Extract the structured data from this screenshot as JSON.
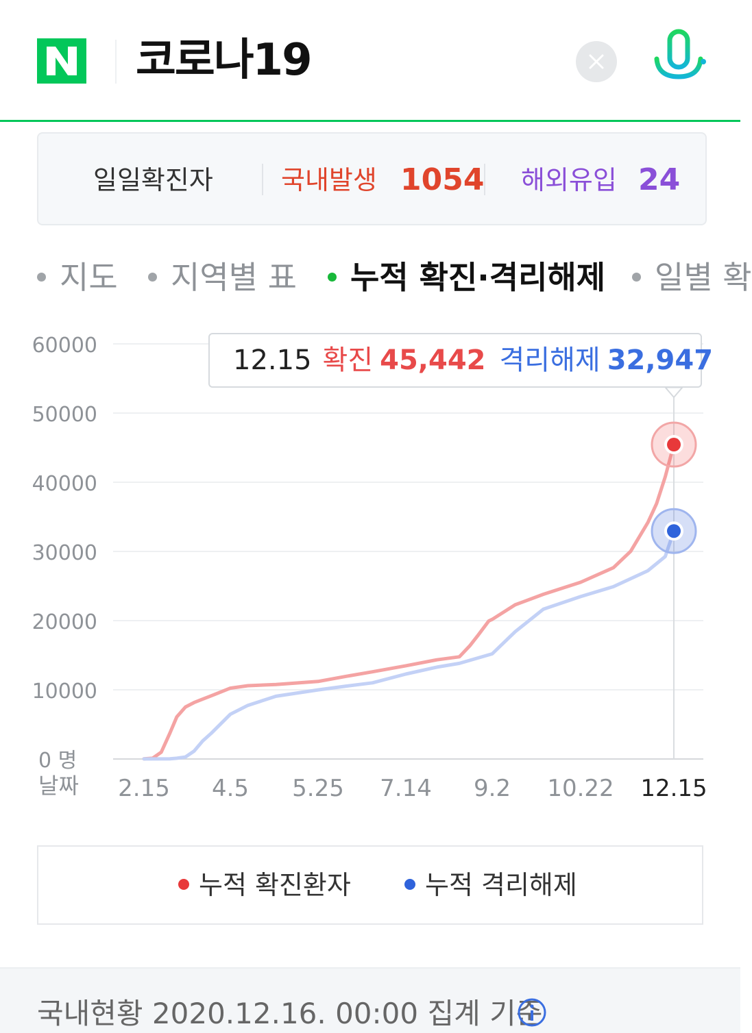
{
  "search": {
    "query": "코로나19"
  },
  "summary": {
    "title": "일일확진자",
    "domestic_label": "국내발생",
    "domestic_value": "1054",
    "overseas_label": "해외유입",
    "overseas_value": "24"
  },
  "tabs": [
    {
      "label": "지도",
      "active": false
    },
    {
      "label": "지역별 표",
      "active": false
    },
    {
      "label": "누적 확진·격리해제",
      "active": true
    },
    {
      "label": "일별 확",
      "active": false
    }
  ],
  "chart": {
    "tooltip": {
      "date": "12.15",
      "confirmed_label": "확진",
      "confirmed_value": "45,442",
      "released_label": "격리해제",
      "released_value": "32,947"
    },
    "y_unit_label": "명",
    "x_axis_label": "날짜",
    "legend": {
      "confirmed": "누적 확진환자",
      "released": "누적 격리해제"
    }
  },
  "chart_data": {
    "type": "line",
    "xlabel": "날짜",
    "ylabel": "",
    "ylim": [
      0,
      60000
    ],
    "yticks": [
      0,
      10000,
      20000,
      30000,
      40000,
      50000,
      60000
    ],
    "x_tick_labels": [
      "2.15",
      "4.5",
      "5.25",
      "7.14",
      "9.2",
      "10.22",
      "12.15"
    ],
    "series": [
      {
        "name": "누적 확진환자",
        "color": "#f06464",
        "points": [
          [
            "2.15",
            28
          ],
          [
            "2.20",
            104
          ],
          [
            "2.25",
            977
          ],
          [
            "3.1",
            3736
          ],
          [
            "3.5",
            6088
          ],
          [
            "3.10",
            7513
          ],
          [
            "3.15",
            8162
          ],
          [
            "3.20",
            8652
          ],
          [
            "3.25",
            9137
          ],
          [
            "4.5",
            10237
          ],
          [
            "4.15",
            10591
          ],
          [
            "5.1",
            10774
          ],
          [
            "5.25",
            11206
          ],
          [
            "6.10",
            11947
          ],
          [
            "6.25",
            12602
          ],
          [
            "7.14",
            13479
          ],
          [
            "8.1",
            14336
          ],
          [
            "8.14",
            14770
          ],
          [
            "8.20",
            16346
          ],
          [
            "8.25",
            17945
          ],
          [
            "8.31",
            19947
          ],
          [
            "9.2",
            20182
          ],
          [
            "9.15",
            22285
          ],
          [
            "10.1",
            23812
          ],
          [
            "10.22",
            25543
          ],
          [
            "11.10",
            27653
          ],
          [
            "11.20",
            30017
          ],
          [
            "11.30",
            34201
          ],
          [
            "12.5",
            36915
          ],
          [
            "12.10",
            40786
          ],
          [
            "12.15",
            45442
          ]
        ]
      },
      {
        "name": "누적 격리해제",
        "color": "#7d9ef0",
        "points": [
          [
            "2.15",
            10
          ],
          [
            "3.1",
            30
          ],
          [
            "3.5",
            108
          ],
          [
            "3.10",
            288
          ],
          [
            "3.15",
            1137
          ],
          [
            "3.20",
            2612
          ],
          [
            "3.25",
            3730
          ],
          [
            "4.5",
            6463
          ],
          [
            "4.15",
            7757
          ],
          [
            "5.1",
            9072
          ],
          [
            "5.25",
            9995
          ],
          [
            "6.10",
            10531
          ],
          [
            "6.25",
            11009
          ],
          [
            "7.14",
            12282
          ],
          [
            "8.1",
            13280
          ],
          [
            "8.14",
            13817
          ],
          [
            "9.2",
            15198
          ],
          [
            "9.15",
            18393
          ],
          [
            "10.1",
            21666
          ],
          [
            "10.22",
            23476
          ],
          [
            "11.10",
            24910
          ],
          [
            "11.30",
            27215
          ],
          [
            "12.10",
            29265
          ],
          [
            "12.15",
            32947
          ]
        ]
      }
    ]
  },
  "footer": {
    "text": "국내현황 2020.12.16. 00:00 집계 기준"
  },
  "colors": {
    "naver_green": "#03c75a",
    "domestic": "#e0452c",
    "overseas": "#8a4fd8",
    "confirmed": "#e84a4a",
    "released": "#3a6ee0"
  }
}
